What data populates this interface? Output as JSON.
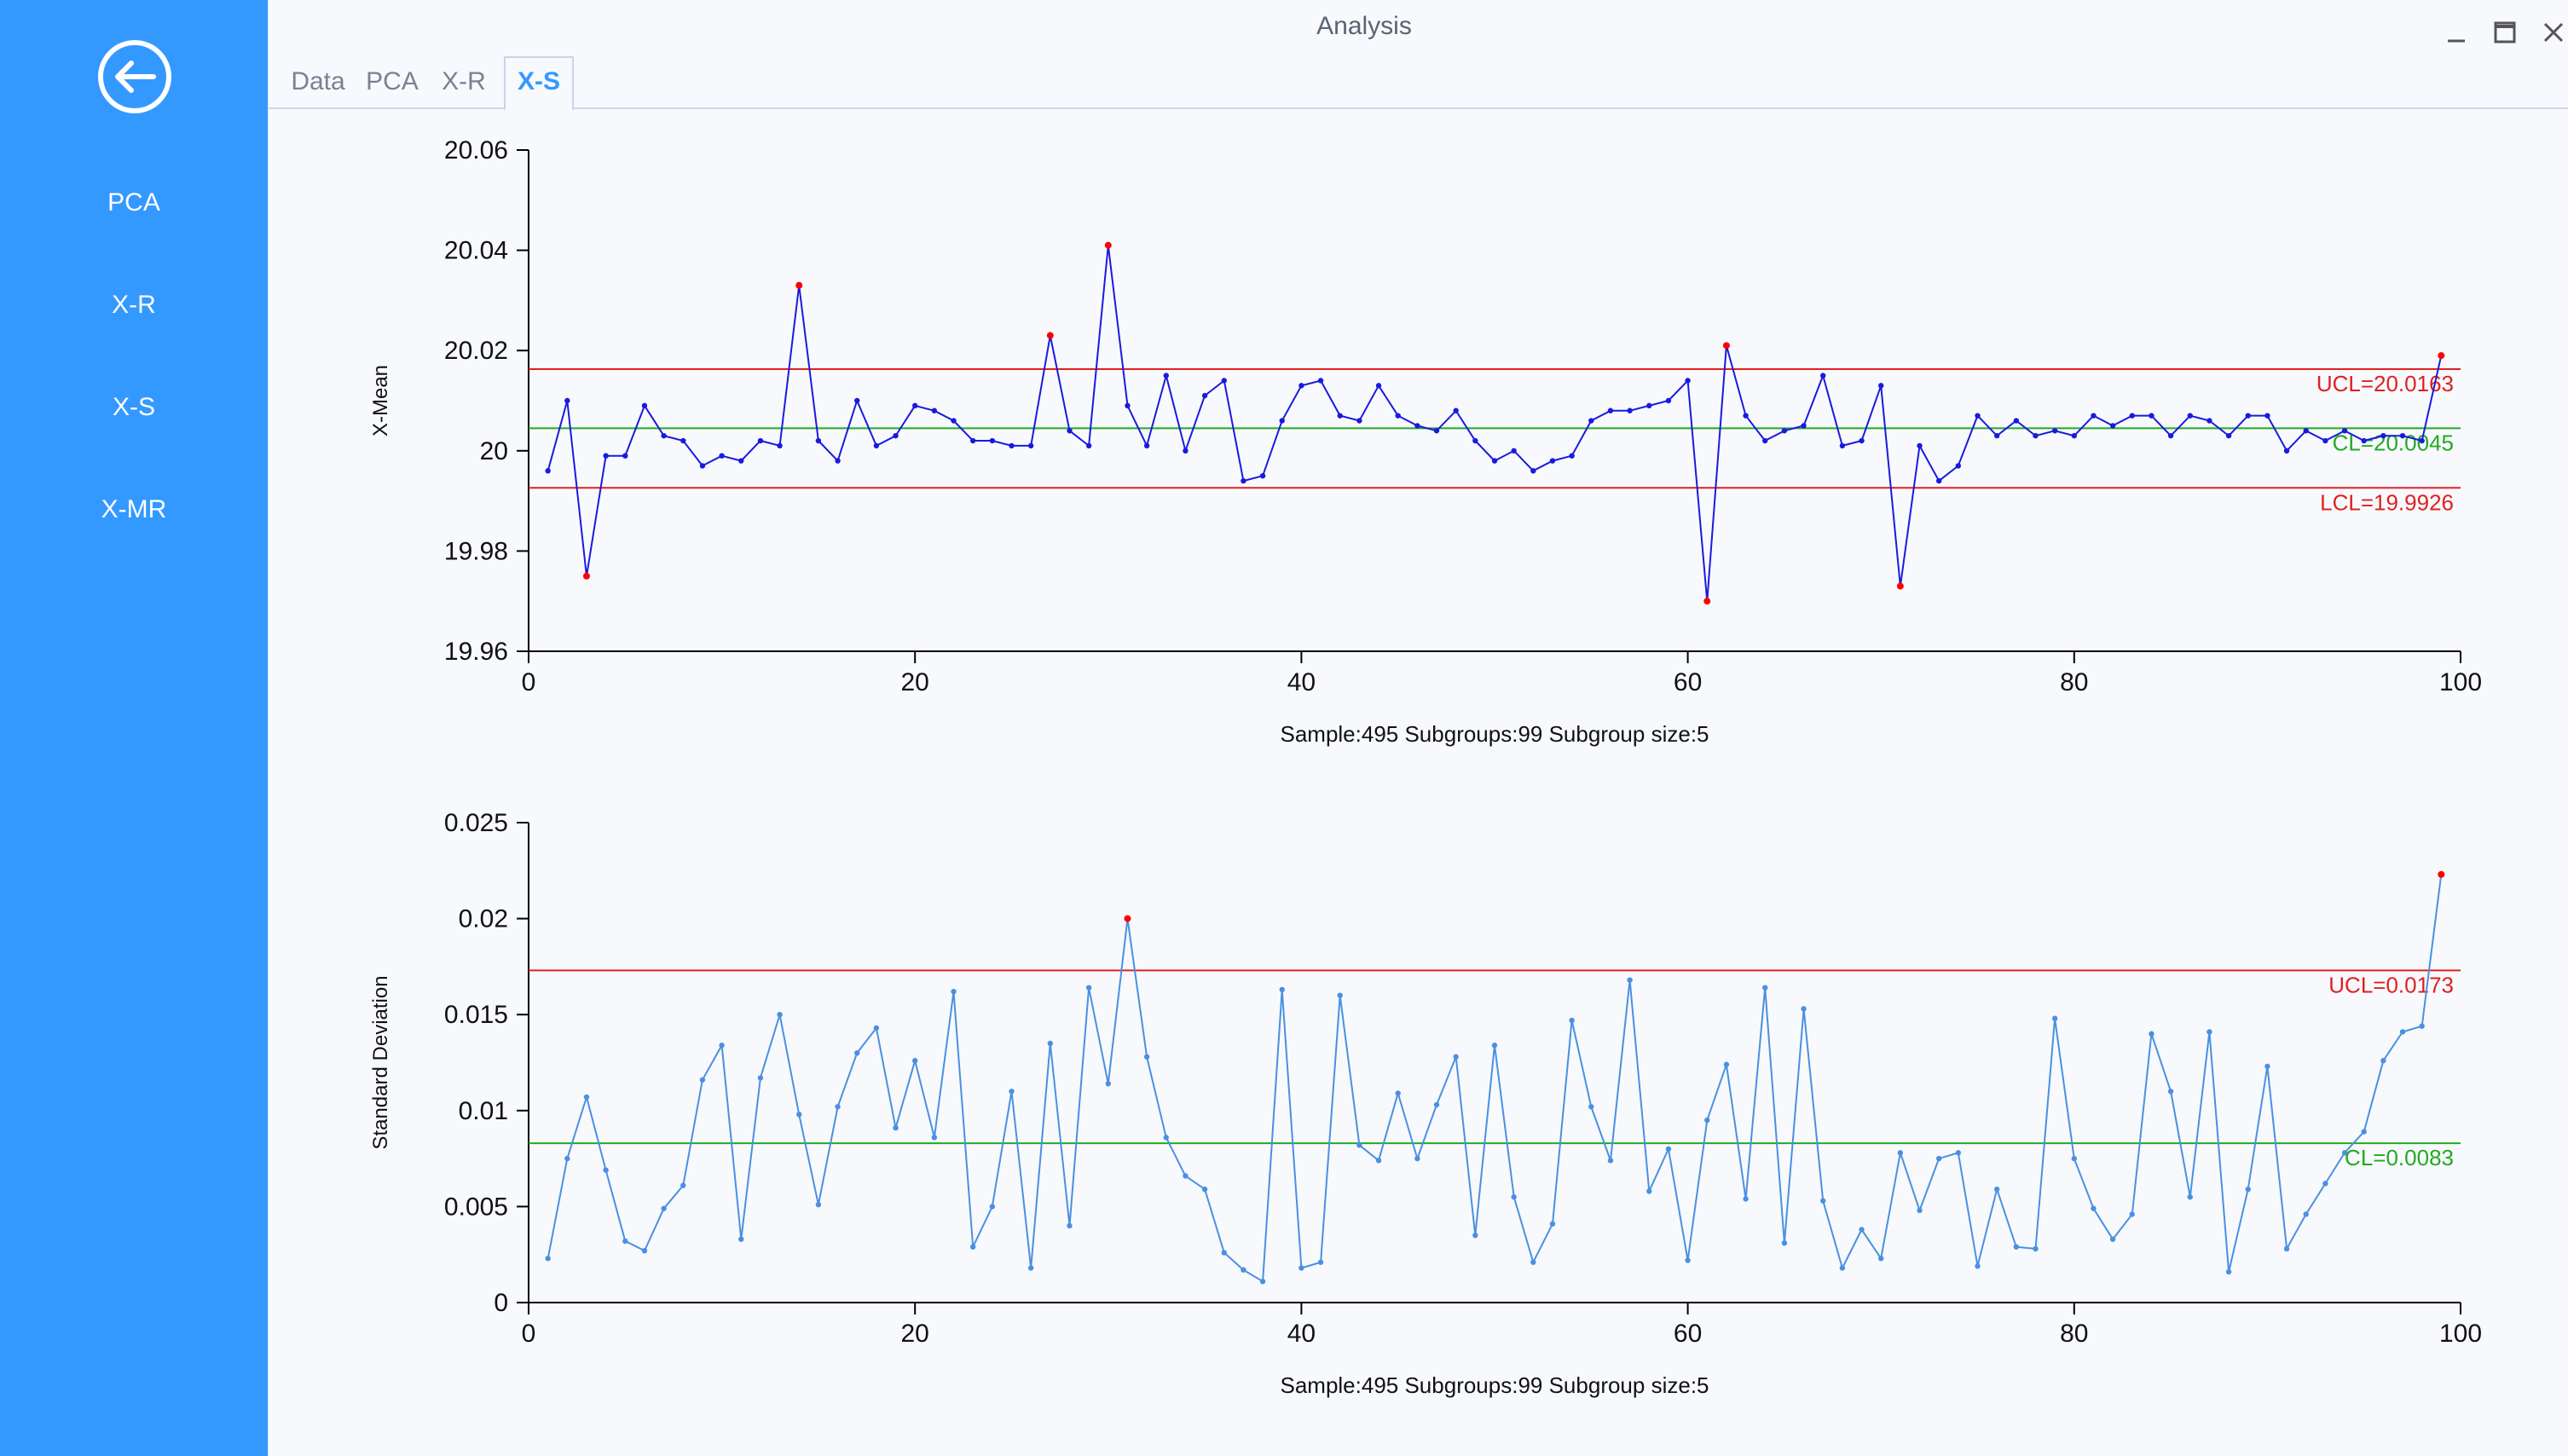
{
  "window": {
    "title": "Analysis"
  },
  "sidebar": {
    "items": [
      {
        "label": "PCA"
      },
      {
        "label": "X-R"
      },
      {
        "label": "X-S"
      },
      {
        "label": "X-MR"
      }
    ]
  },
  "tabs": [
    {
      "label": "Data"
    },
    {
      "label": "PCA"
    },
    {
      "label": "X-R"
    },
    {
      "label": "X-S",
      "active": true
    }
  ],
  "colors": {
    "accent": "#3399ff",
    "limit": "#e02020",
    "center": "#22aa22",
    "mean_series": "#1a1add",
    "sd_series": "#4a90e2",
    "out_of_control": "#ff0000"
  },
  "chart_data": [
    {
      "type": "line",
      "ylabel": "X-Mean",
      "xlabel": "Sample:495  Subgroups:99  Subgroup size:5",
      "xlim": [
        0,
        100
      ],
      "ylim": [
        19.96,
        20.06
      ],
      "xticks": [
        "0",
        "20",
        "40",
        "60",
        "80",
        "100"
      ],
      "yticks": [
        "19.96",
        "19.98",
        "20",
        "20.02",
        "20.04",
        "20.06"
      ],
      "ytick_values": [
        19.96,
        19.98,
        20.0,
        20.02,
        20.04,
        20.06
      ],
      "limits": {
        "ucl": {
          "value": 20.0163,
          "label": "UCL=20.0163"
        },
        "cl": {
          "value": 20.0045,
          "label": "CL=20.0045"
        },
        "lcl": {
          "value": 19.9926,
          "label": "LCL=19.9926"
        }
      },
      "x": [
        1,
        2,
        3,
        4,
        5,
        6,
        7,
        8,
        9,
        10,
        11,
        12,
        13,
        14,
        15,
        16,
        17,
        18,
        19,
        20,
        21,
        22,
        23,
        24,
        25,
        26,
        27,
        28,
        29,
        30,
        31,
        32,
        33,
        34,
        35,
        36,
        37,
        38,
        39,
        40,
        41,
        42,
        43,
        44,
        45,
        46,
        47,
        48,
        49,
        50,
        51,
        52,
        53,
        54,
        55,
        56,
        57,
        58,
        59,
        60,
        61,
        62,
        63,
        64,
        65,
        66,
        67,
        68,
        69,
        70,
        71,
        72,
        73,
        74,
        75,
        76,
        77,
        78,
        79,
        80,
        81,
        82,
        83,
        84,
        85,
        86,
        87,
        88,
        89,
        90,
        91,
        92,
        93,
        94,
        95,
        96,
        97,
        98,
        99
      ],
      "values": [
        19.996,
        20.01,
        19.975,
        19.999,
        19.999,
        20.009,
        20.003,
        20.002,
        19.997,
        19.999,
        19.998,
        20.002,
        20.001,
        20.033,
        20.002,
        19.998,
        20.01,
        20.001,
        20.003,
        20.009,
        20.008,
        20.006,
        20.002,
        20.002,
        20.001,
        20.001,
        20.023,
        20.004,
        20.001,
        20.041,
        20.009,
        20.001,
        20.015,
        20.0,
        20.011,
        20.014,
        19.994,
        19.995,
        20.006,
        20.013,
        20.014,
        20.007,
        20.006,
        20.013,
        20.007,
        20.005,
        20.004,
        20.008,
        20.002,
        19.998,
        20.0,
        19.996,
        19.998,
        19.999,
        20.006,
        20.008,
        20.008,
        20.009,
        20.01,
        20.014,
        19.97,
        20.021,
        20.007,
        20.002,
        20.004,
        20.005,
        20.015,
        20.001,
        20.002,
        20.013,
        19.973,
        20.001,
        19.994,
        19.997,
        20.007,
        20.003,
        20.006,
        20.003,
        20.004,
        20.003,
        20.007,
        20.005,
        20.007,
        20.007,
        20.003,
        20.007,
        20.006,
        20.003,
        20.007,
        20.007,
        20.0,
        20.004,
        20.002,
        20.004,
        20.002,
        20.003,
        20.003,
        20.002,
        20.019
      ]
    },
    {
      "type": "line",
      "ylabel": "Standard Deviation",
      "xlabel": "Sample:495  Subgroups:99  Subgroup size:5",
      "xlim": [
        0,
        100
      ],
      "ylim": [
        0,
        0.025
      ],
      "xticks": [
        "0",
        "20",
        "40",
        "60",
        "80",
        "100"
      ],
      "yticks": [
        "0",
        "0.005",
        "0.01",
        "0.015",
        "0.02",
        "0.025"
      ],
      "ytick_values": [
        0,
        0.005,
        0.01,
        0.015,
        0.02,
        0.025
      ],
      "limits": {
        "ucl": {
          "value": 0.0173,
          "label": "UCL=0.0173"
        },
        "cl": {
          "value": 0.0083,
          "label": "CL=0.0083"
        }
      },
      "x": [
        1,
        2,
        3,
        4,
        5,
        6,
        7,
        8,
        9,
        10,
        11,
        12,
        13,
        14,
        15,
        16,
        17,
        18,
        19,
        20,
        21,
        22,
        23,
        24,
        25,
        26,
        27,
        28,
        29,
        30,
        31,
        32,
        33,
        34,
        35,
        36,
        37,
        38,
        39,
        40,
        41,
        42,
        43,
        44,
        45,
        46,
        47,
        48,
        49,
        50,
        51,
        52,
        53,
        54,
        55,
        56,
        57,
        58,
        59,
        60,
        61,
        62,
        63,
        64,
        65,
        66,
        67,
        68,
        69,
        70,
        71,
        72,
        73,
        74,
        75,
        76,
        77,
        78,
        79,
        80,
        81,
        82,
        83,
        84,
        85,
        86,
        87,
        88,
        89,
        90,
        91,
        92,
        93,
        94,
        95,
        96,
        97,
        98,
        99
      ],
      "values": [
        0.0023,
        0.0075,
        0.0107,
        0.0069,
        0.0032,
        0.0027,
        0.0049,
        0.0061,
        0.0116,
        0.0134,
        0.0033,
        0.0117,
        0.015,
        0.0098,
        0.0051,
        0.0102,
        0.013,
        0.0143,
        0.0091,
        0.0126,
        0.0086,
        0.0162,
        0.0029,
        0.005,
        0.011,
        0.0018,
        0.0135,
        0.004,
        0.0164,
        0.0114,
        0.02,
        0.0128,
        0.0086,
        0.0066,
        0.0059,
        0.0026,
        0.0017,
        0.0011,
        0.0163,
        0.0018,
        0.0021,
        0.016,
        0.0082,
        0.0074,
        0.0109,
        0.0075,
        0.0103,
        0.0128,
        0.0035,
        0.0134,
        0.0055,
        0.0021,
        0.0041,
        0.0147,
        0.0102,
        0.0074,
        0.0168,
        0.0058,
        0.008,
        0.0022,
        0.0095,
        0.0124,
        0.0054,
        0.0164,
        0.0031,
        0.0153,
        0.0053,
        0.0018,
        0.0038,
        0.0023,
        0.0078,
        0.0048,
        0.0075,
        0.0078,
        0.0019,
        0.0059,
        0.0029,
        0.0028,
        0.0148,
        0.0075,
        0.0049,
        0.0033,
        0.0046,
        0.014,
        0.011,
        0.0055,
        0.0141,
        0.0016,
        0.0059,
        0.0123,
        0.0028,
        0.0046,
        0.0062,
        0.0078,
        0.0089,
        0.0126,
        0.0141,
        0.0144,
        0.0223
      ]
    }
  ]
}
